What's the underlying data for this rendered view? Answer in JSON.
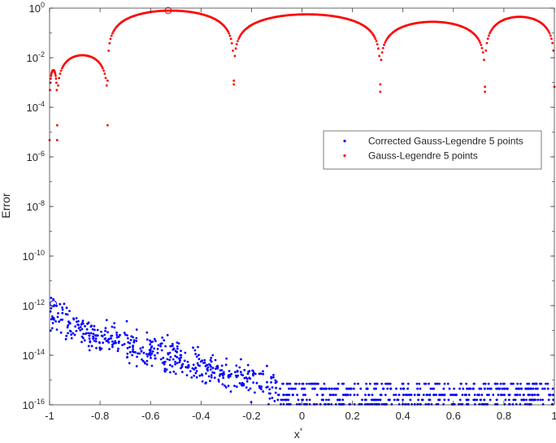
{
  "chart_data": {
    "type": "scatter",
    "title": "",
    "xlabel": "x",
    "xlabel_superscript": "*",
    "ylabel": "Error",
    "xlim": [
      -1,
      1
    ],
    "ylim": [
      1e-16,
      1
    ],
    "yscale": "log",
    "grid": false,
    "legend_position": "top-right (inside, below upper region)",
    "x_tick_labels": [
      "-1",
      "-0.8",
      "-0.6",
      "-0.4",
      "-0.2",
      "0",
      "0.2",
      "0.4",
      "0.6",
      "0.8",
      "1"
    ],
    "x_ticks": [
      -1,
      -0.8,
      -0.6,
      -0.4,
      -0.2,
      0,
      0.2,
      0.4,
      0.6,
      0.8,
      1
    ],
    "y_ticks": [
      {
        "base": "10",
        "exp": "0",
        "value": 1
      },
      {
        "base": "10",
        "exp": "-2",
        "value": 0.01
      },
      {
        "base": "10",
        "exp": "-4",
        "value": 0.0001
      },
      {
        "base": "10",
        "exp": "-6",
        "value": 1e-06
      },
      {
        "base": "10",
        "exp": "-8",
        "value": 1e-08
      },
      {
        "base": "10",
        "exp": "-10",
        "value": 1e-10
      },
      {
        "base": "10",
        "exp": "-12",
        "value": 1e-12
      },
      {
        "base": "10",
        "exp": "-14",
        "value": 1e-14
      },
      {
        "base": "10",
        "exp": "-16",
        "value": 1e-16
      }
    ],
    "series": [
      {
        "name": "Corrected Gauss-Legendre 5 points",
        "color": "#0000ff",
        "marker": "dot",
        "shape_description": "log10(error) ≈ -12 at x=-1, decreasing roughly linearly to ≈ -15.4 near x=-0.05, then a flat floor at about -15.5 to -15.8 up to x=1; widely scattered (±0.8 decades)",
        "trend_points": [
          {
            "x": -1.0,
            "log10_error": -12.3
          },
          {
            "x": -0.8,
            "log10_error": -13.3
          },
          {
            "x": -0.6,
            "log10_error": -13.8
          },
          {
            "x": -0.4,
            "log10_error": -14.5
          },
          {
            "x": -0.2,
            "log10_error": -15.0
          },
          {
            "x": 0.0,
            "log10_error": -15.6
          },
          {
            "x": 0.5,
            "log10_error": -15.7
          },
          {
            "x": 1.0,
            "log10_error": -15.6
          }
        ],
        "highlighted_point": {
          "x": -0.985,
          "y": 1.2e-12
        }
      },
      {
        "name": "Gauss-Legendre 5 points",
        "color": "#ff0000",
        "marker": "dot",
        "shape_description": "error oscillates between ~1 and ~1e-3 with sharp dips at roughly the quadrature nodes; arches peaking near 0.4-0.8",
        "dips_x": [
          -0.97,
          -0.77,
          -0.27,
          0.31,
          0.725
        ],
        "arch_peaks": [
          {
            "x": -0.985,
            "log10_error": -2.5
          },
          {
            "x": -0.945,
            "log10_error": -1.9
          },
          {
            "x": -0.53,
            "log10_error": -0.1
          },
          {
            "x": 0.0,
            "log10_error": -0.25
          },
          {
            "x": 0.54,
            "log10_error": -0.55
          },
          {
            "x": 0.905,
            "log10_error": -0.35
          }
        ],
        "highlighted_point": {
          "x": -0.53,
          "y": 0.8
        }
      }
    ]
  }
}
